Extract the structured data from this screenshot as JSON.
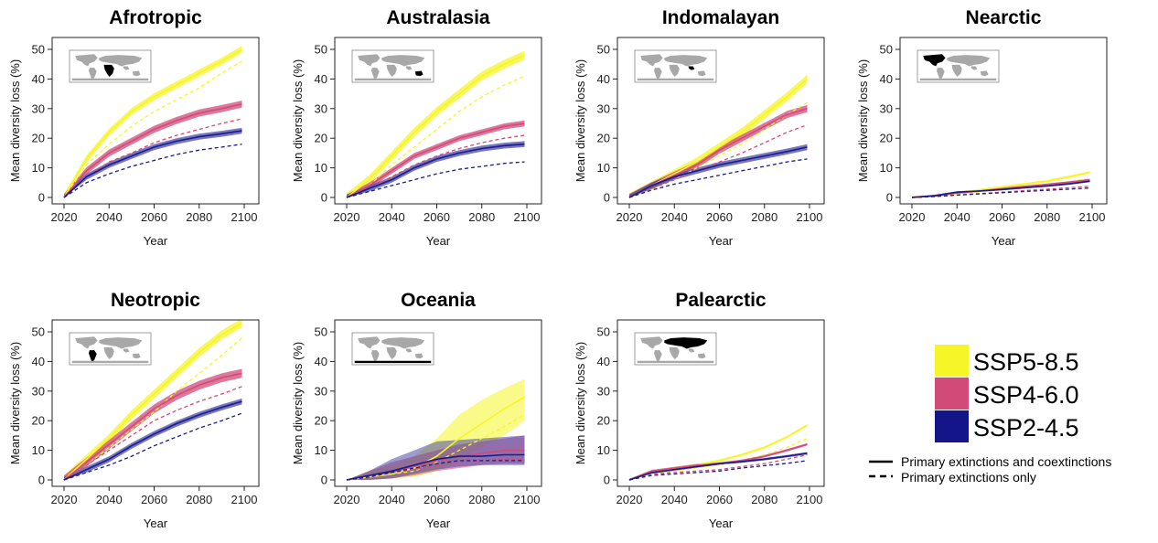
{
  "chart_data": {
    "type": "line",
    "xlabel": "Year",
    "ylabel": "Mean diversity loss (%)",
    "xlim": [
      2020,
      2100
    ],
    "ylim": [
      0,
      50
    ],
    "xticks": [
      2020,
      2040,
      2060,
      2080,
      2100
    ],
    "yticks": [
      0,
      10,
      20,
      30,
      40,
      50
    ],
    "x": [
      2020,
      2030,
      2040,
      2050,
      2060,
      2070,
      2080,
      2090,
      2099
    ],
    "scenario_colors": {
      "SSP5-8.5": "#f5f528",
      "SSP4-6.0": "#d24b78",
      "SSP2-4.5": "#1a1a8c"
    },
    "panels": [
      {
        "title": "Afrotropic",
        "map_region": "africa",
        "series": [
          {
            "name": "SSP5-8.5",
            "kind": "Primary extinctions and coextinctions",
            "values": [
              0,
              13,
              22,
              29,
              34,
              38,
              42,
              46,
              50
            ],
            "band": 1.2
          },
          {
            "name": "SSP5-8.5",
            "kind": "Primary extinctions only",
            "values": [
              0,
              11,
              18,
              24,
              29,
              33,
              37,
              42,
              46
            ]
          },
          {
            "name": "SSP4-6.0",
            "kind": "Primary extinctions and coextinctions",
            "values": [
              0,
              9,
              15,
              19,
              23,
              26,
              28.5,
              30,
              31.5
            ],
            "band": 1.2
          },
          {
            "name": "SSP4-6.0",
            "kind": "Primary extinctions only",
            "values": [
              0,
              7,
              12,
              15,
              18.5,
              21,
              23,
              25,
              26.5
            ]
          },
          {
            "name": "SSP2-4.5",
            "kind": "Primary extinctions and coextinctions",
            "values": [
              0,
              7,
              11,
              14,
              17,
              19,
              20.5,
              21.5,
              22.5
            ],
            "band": 1.0
          },
          {
            "name": "SSP2-4.5",
            "kind": "Primary extinctions only",
            "values": [
              0,
              5,
              8,
              10.5,
              12.5,
              14.5,
              16,
              17,
              18
            ]
          }
        ]
      },
      {
        "title": "Australasia",
        "map_region": "australia",
        "series": [
          {
            "name": "SSP5-8.5",
            "kind": "Primary extinctions and coextinctions",
            "values": [
              0,
              6,
              14,
              22,
              29,
              35,
              41,
              45,
              48
            ],
            "band": 1.5
          },
          {
            "name": "SSP5-8.5",
            "kind": "Primary extinctions only",
            "values": [
              0,
              4,
              11,
              17,
              23,
              29,
              34,
              38,
              41
            ]
          },
          {
            "name": "SSP4-6.0",
            "kind": "Primary extinctions and coextinctions",
            "values": [
              0,
              4,
              9,
              14,
              17,
              20,
              22,
              24,
              25
            ],
            "band": 1.0
          },
          {
            "name": "SSP4-6.0",
            "kind": "Primary extinctions only",
            "values": [
              0,
              3,
              7,
              11,
              14,
              16.5,
              18.5,
              20,
              21
            ]
          },
          {
            "name": "SSP2-4.5",
            "kind": "Primary extinctions and coextinctions",
            "values": [
              0,
              3,
              6,
              10,
              13,
              15,
              16.5,
              17.5,
              18
            ],
            "band": 1.0
          },
          {
            "name": "SSP2-4.5",
            "kind": "Primary extinctions only",
            "values": [
              0,
              2,
              4,
              6,
              8,
              9.5,
              10.5,
              11.5,
              12
            ]
          }
        ]
      },
      {
        "title": "Indomalayan",
        "map_region": "asia",
        "series": [
          {
            "name": "SSP5-8.5",
            "kind": "Primary extinctions and coextinctions",
            "values": [
              0,
              4,
              8,
              12,
              17,
              22,
              28,
              34,
              40
            ],
            "band": 1.5
          },
          {
            "name": "SSP5-8.5",
            "kind": "Primary extinctions only",
            "values": [
              0,
              3,
              6,
              10,
              14,
              18,
              23,
              28,
              32
            ]
          },
          {
            "name": "SSP4-6.0",
            "kind": "Primary extinctions and coextinctions",
            "values": [
              0,
              4,
              7.5,
              11,
              16,
              20,
              24,
              28,
              30
            ],
            "band": 1.2
          },
          {
            "name": "SSP4-6.0",
            "kind": "Primary extinctions only",
            "values": [
              0,
              3,
              6,
              9,
              12,
              15,
              18.5,
              22,
              24.5
            ]
          },
          {
            "name": "SSP2-4.5",
            "kind": "Primary extinctions and coextinctions",
            "values": [
              0,
              4,
              7,
              9,
              11,
              12.5,
              14,
              15.5,
              17
            ],
            "band": 1.0
          },
          {
            "name": "SSP2-4.5",
            "kind": "Primary extinctions only",
            "values": [
              0,
              2.5,
              4.5,
              6,
              7.5,
              9,
              10.5,
              12,
              13
            ]
          }
        ]
      },
      {
        "title": "Nearctic",
        "map_region": "north-america",
        "series": [
          {
            "name": "SSP5-8.5",
            "kind": "Primary extinctions and coextinctions",
            "values": [
              0,
              0.5,
              1.5,
              2.5,
              3.5,
              4.5,
              5.5,
              7,
              8.5
            ],
            "band": 0.4
          },
          {
            "name": "SSP5-8.5",
            "kind": "Primary extinctions only",
            "values": [
              0,
              0.4,
              1,
              1.8,
              2.6,
              3.4,
              4.2,
              5.4,
              6.5
            ]
          },
          {
            "name": "SSP4-6.0",
            "kind": "Primary extinctions and coextinctions",
            "values": [
              0,
              0.5,
              1.5,
              2.2,
              3,
              3.7,
              4.4,
              5.2,
              6
            ],
            "band": 0.3
          },
          {
            "name": "SSP4-6.0",
            "kind": "Primary extinctions only",
            "values": [
              0,
              0.3,
              0.8,
              1.3,
              1.8,
              2.3,
              2.8,
              3.3,
              3.8
            ]
          },
          {
            "name": "SSP2-4.5",
            "kind": "Primary extinctions and coextinctions",
            "values": [
              0,
              0.6,
              1.8,
              2.2,
              2.7,
              3.3,
              3.9,
              4.6,
              5.5
            ],
            "band": 0.3
          },
          {
            "name": "SSP2-4.5",
            "kind": "Primary extinctions only",
            "values": [
              0,
              0.3,
              0.8,
              1.2,
              1.6,
              2,
              2.4,
              2.8,
              3.2
            ]
          }
        ]
      },
      {
        "title": "Neotropic",
        "map_region": "south-america",
        "series": [
          {
            "name": "SSP5-8.5",
            "kind": "Primary extinctions and coextinctions",
            "values": [
              0,
              7,
              14,
              22,
              29,
              36,
              43,
              49,
              53
            ],
            "band": 1.5
          },
          {
            "name": "SSP5-8.5",
            "kind": "Primary extinctions only",
            "values": [
              0,
              5,
              11,
              17,
              23,
              30,
              36,
              42,
              48
            ]
          },
          {
            "name": "SSP4-6.0",
            "kind": "Primary extinctions and coextinctions",
            "values": [
              0,
              6,
              12,
              18,
              24,
              28.5,
              32,
              34.5,
              36
            ],
            "band": 1.5
          },
          {
            "name": "SSP4-6.0",
            "kind": "Primary extinctions only",
            "values": [
              0,
              5,
              10,
              15,
              20,
              23.5,
              26.5,
              29,
              31.5
            ]
          },
          {
            "name": "SSP2-4.5",
            "kind": "Primary extinctions and coextinctions",
            "values": [
              0,
              3.5,
              7,
              11.5,
              15.5,
              19,
              22,
              24.5,
              26.5
            ],
            "band": 1.0
          },
          {
            "name": "SSP2-4.5",
            "kind": "Primary extinctions only",
            "values": [
              0,
              2.5,
              5,
              8,
              11.5,
              14.5,
              17.5,
              20,
              22.5
            ]
          }
        ]
      },
      {
        "title": "Oceania",
        "map_region": "pacific",
        "series": [
          {
            "name": "SSP5-8.5",
            "kind": "Primary extinctions and coextinctions",
            "values": [
              0,
              1,
              2,
              4,
              8,
              14,
              19,
              24,
              28
            ],
            "band_lo": [
              0,
              0,
              0.5,
              1,
              3,
              7,
              11,
              15,
              20
            ],
            "band_hi": [
              0,
              3,
              5,
              8,
              14,
              22,
              27,
              31,
              34
            ]
          },
          {
            "name": "SSP5-8.5",
            "kind": "Primary extinctions only",
            "values": [
              0,
              1,
              2,
              3,
              6,
              10,
              14,
              18,
              22
            ]
          },
          {
            "name": "SSP4-6.0",
            "kind": "Primary extinctions and coextinctions",
            "values": [
              0,
              1.5,
              3,
              4.5,
              6.5,
              8,
              9,
              10,
              10
            ],
            "band_lo": [
              0,
              0,
              0.5,
              1.5,
              3,
              4,
              5,
              5.5,
              5.5
            ],
            "band_hi": [
              0,
              3,
              6,
              8,
              10,
              12,
              13,
              14,
              15
            ]
          },
          {
            "name": "SSP4-6.0",
            "kind": "Primary extinctions only",
            "values": [
              0,
              1,
              2.5,
              3.5,
              5,
              6,
              6.5,
              7,
              7
            ]
          },
          {
            "name": "SSP2-4.5",
            "kind": "Primary extinctions and coextinctions",
            "values": [
              0,
              1.5,
              3,
              5,
              7,
              8,
              8,
              8.5,
              8.5
            ],
            "band_lo": [
              0,
              0,
              0.5,
              2,
              3.5,
              4.5,
              5,
              5,
              5
            ],
            "band_hi": [
              0,
              3,
              7,
              10,
              13,
              13.5,
              14,
              14.5,
              15
            ]
          },
          {
            "name": "SSP2-4.5",
            "kind": "Primary extinctions only",
            "values": [
              0,
              1,
              2.5,
              4,
              5.5,
              6.5,
              6.5,
              6.5,
              6.5
            ]
          }
        ]
      },
      {
        "title": "Palearctic",
        "map_region": "eurasia",
        "series": [
          {
            "name": "SSP5-8.5",
            "kind": "Primary extinctions and coextinctions",
            "values": [
              0,
              2.5,
              4,
              5,
              6.5,
              8.5,
              11,
              14.5,
              18.5
            ],
            "band": 0.4
          },
          {
            "name": "SSP5-8.5",
            "kind": "Primary extinctions only",
            "values": [
              0,
              2,
              3,
              4,
              5,
              6.5,
              8.5,
              11,
              14
            ]
          },
          {
            "name": "SSP4-6.0",
            "kind": "Primary extinctions and coextinctions",
            "values": [
              0,
              3,
              4,
              5,
              5.5,
              6.5,
              8,
              10,
              12
            ],
            "band": 0.4
          },
          {
            "name": "SSP4-6.0",
            "kind": "Primary extinctions only",
            "values": [
              0,
              2,
              2.5,
              3,
              3.5,
              4.5,
              5.5,
              7,
              8.5
            ]
          },
          {
            "name": "SSP2-4.5",
            "kind": "Primary extinctions and coextinctions",
            "values": [
              0,
              2.5,
              3.5,
              4.5,
              5.5,
              6.2,
              7,
              8,
              9
            ],
            "band": 0.4
          },
          {
            "name": "SSP2-4.5",
            "kind": "Primary extinctions only",
            "values": [
              0,
              1.5,
              2,
              2.5,
              3,
              4,
              4.8,
              5.6,
              6.5
            ]
          }
        ]
      }
    ],
    "legend": {
      "scenarios": [
        "SSP5-8.5",
        "SSP4-6.0",
        "SSP2-4.5"
      ],
      "line_types": [
        "Primary extinctions and coextinctions",
        "Primary extinctions only"
      ]
    }
  }
}
